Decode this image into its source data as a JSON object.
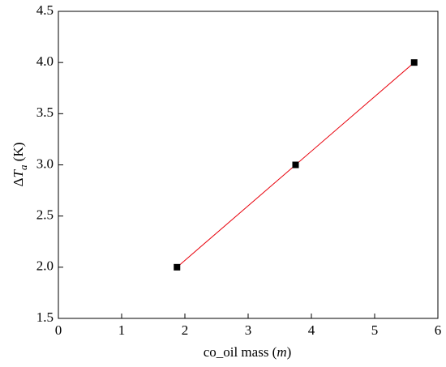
{
  "chart_data": {
    "type": "scatter",
    "x_label": {
      "text": "co_oil mass (",
      "italic": "m",
      "end": ")"
    },
    "y_label": {
      "prefix": "Δ",
      "symbol": "T",
      "subscript": "a",
      "unit": " (K)"
    },
    "x": [
      1.875,
      3.75,
      5.625
    ],
    "series": [
      {
        "values": [
          2,
          3,
          4
        ],
        "color": "#000000",
        "line_color": "#e8000b"
      }
    ],
    "xlim": [
      0,
      6
    ],
    "xticks": [
      0,
      1,
      2,
      3,
      4,
      5,
      6
    ],
    "ylim": [
      1.5,
      4.5
    ],
    "yticks": [
      1.5,
      {
        "value": 2,
        "label": "2.0"
      },
      2.5,
      {
        "value": 3,
        "label": "3.0"
      },
      3.5,
      {
        "value": 4,
        "label": "4.0"
      },
      4.5
    ],
    "grid": false
  }
}
